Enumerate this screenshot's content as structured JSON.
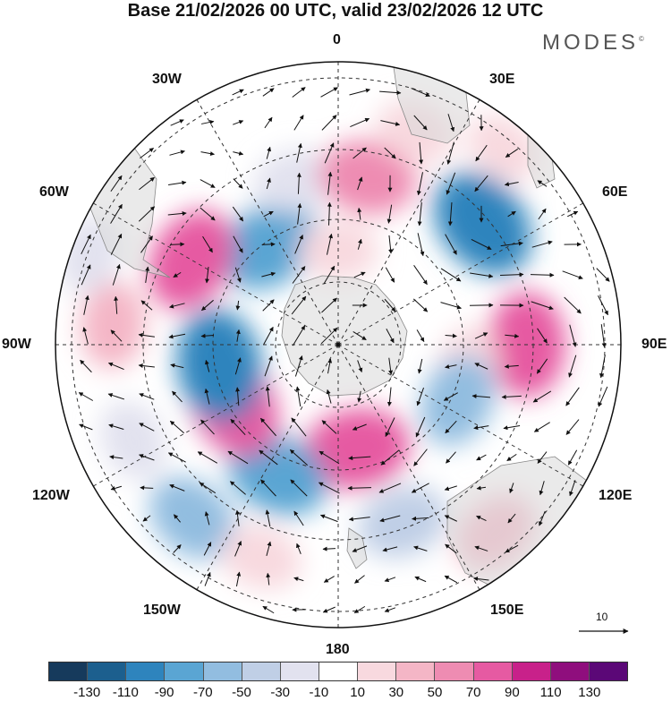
{
  "title": "Base 21/02/2026 00 UTC, valid 23/02/2026 12 UTC",
  "brand": "MODES",
  "brand_mark": "©",
  "map": {
    "projection": "south polar stereographic",
    "longitude_labels": {
      "top": "0",
      "top_right": "30E",
      "right_upper": "60E",
      "right": "90E",
      "right_lower": "120E",
      "bottom_right": "150E",
      "bottom": "180",
      "bottom_left": "150W",
      "left_lower": "120W",
      "left": "90W",
      "left_upper": "60W",
      "top_left": "30W"
    },
    "reference_vector": "10",
    "anomaly_cells": [
      {
        "lon": -35,
        "lat": -58,
        "value": -75
      },
      {
        "lon": -15,
        "lat": -45,
        "value": -25
      },
      {
        "lon": 10,
        "lat": -45,
        "value": 60
      },
      {
        "lon": 20,
        "lat": -30,
        "value": 20
      },
      {
        "lon": 50,
        "lat": -40,
        "value": -95
      },
      {
        "lon": 40,
        "lat": -22,
        "value": 15
      },
      {
        "lon": 90,
        "lat": -40,
        "value": 75
      },
      {
        "lon": 100,
        "lat": -55,
        "value": 25
      },
      {
        "lon": 115,
        "lat": -55,
        "value": -50
      },
      {
        "lon": 140,
        "lat": -25,
        "value": 35
      },
      {
        "lon": 160,
        "lat": -40,
        "value": -45
      },
      {
        "lon": 170,
        "lat": -62,
        "value": 80
      },
      {
        "lon": -155,
        "lat": -52,
        "value": -70
      },
      {
        "lon": -140,
        "lat": -30,
        "value": -55
      },
      {
        "lon": -160,
        "lat": -30,
        "value": 25
      },
      {
        "lon": -120,
        "lat": -58,
        "value": 85
      },
      {
        "lon": -100,
        "lat": -58,
        "value": -95
      },
      {
        "lon": -85,
        "lat": -30,
        "value": 35
      },
      {
        "lon": -60,
        "lat": -45,
        "value": 75
      },
      {
        "lon": -115,
        "lat": -30,
        "value": -25
      },
      {
        "lon": -70,
        "lat": -20,
        "value": -20
      },
      {
        "lon": 0,
        "lat": -65,
        "value": 20
      }
    ]
  },
  "colorbar": {
    "tick_labels": [
      "-130",
      "-110",
      "-90",
      "-70",
      "-50",
      "-30",
      "-10",
      "10",
      "30",
      "50",
      "70",
      "90",
      "110",
      "130"
    ],
    "colors": [
      "#163a5c",
      "#1c5f8e",
      "#2e84bd",
      "#5aa5d3",
      "#92bde0",
      "#c0cfe6",
      "#e2e2ef",
      "#ffffff",
      "#f8d9df",
      "#f4b6c6",
      "#ee8cb2",
      "#e65aa2",
      "#c8218a",
      "#8f0e7d",
      "#5b0877"
    ]
  }
}
